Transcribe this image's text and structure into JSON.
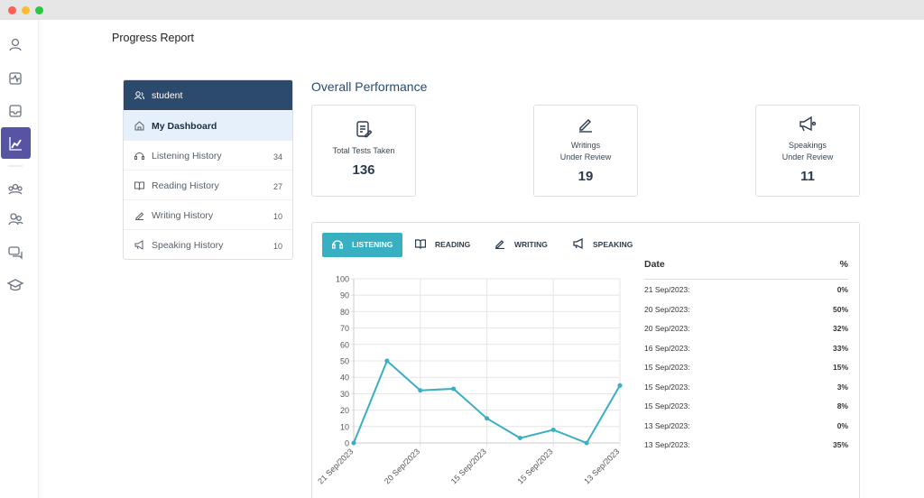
{
  "header": {
    "title": "Progress Report"
  },
  "sidebar": {
    "user": "student",
    "items": [
      {
        "label": "My Dashboard"
      },
      {
        "label": "Listening History",
        "count": 34
      },
      {
        "label": "Reading History",
        "count": 27
      },
      {
        "label": "Writing History",
        "count": 10
      },
      {
        "label": "Speaking History",
        "count": 10
      }
    ]
  },
  "overview": {
    "title": "Overall Performance",
    "stats": [
      {
        "label": [
          "Total Tests Taken"
        ],
        "value": 136
      },
      {
        "label": [
          "Writings",
          "Under Review"
        ],
        "value": 19
      },
      {
        "label": [
          "Speakings",
          "Under Review"
        ],
        "value": 11
      }
    ]
  },
  "tabs": [
    "LISTENING",
    "READING",
    "WRITING",
    "SPEAKING"
  ],
  "chart_data": {
    "type": "line",
    "categories": [
      "21 Sep/2023",
      null,
      "20 Sep/2023",
      null,
      "15 Sep/2023",
      null,
      "15 Sep/2023",
      null,
      "13 Sep/2023"
    ],
    "values": [
      0,
      50,
      32,
      33,
      15,
      3,
      8,
      0,
      35
    ],
    "color": "#3aafc2",
    "ylim": [
      0,
      100
    ],
    "yticks": [
      0,
      10,
      20,
      30,
      40,
      50,
      60,
      70,
      80,
      90,
      100
    ],
    "grid": true
  },
  "table": {
    "header": [
      "Date",
      "%"
    ],
    "rows": [
      [
        "21 Sep/2023:",
        "0%"
      ],
      [
        "20 Sep/2023:",
        "50%"
      ],
      [
        "20 Sep/2023:",
        "32%"
      ],
      [
        "16 Sep/2023:",
        "33%"
      ],
      [
        "15 Sep/2023:",
        "15%"
      ],
      [
        "15 Sep/2023:",
        "3%"
      ],
      [
        "15 Sep/2023:",
        "8%"
      ],
      [
        "13 Sep/2023:",
        "0%"
      ],
      [
        "13 Sep/2023:",
        "35%"
      ]
    ]
  }
}
